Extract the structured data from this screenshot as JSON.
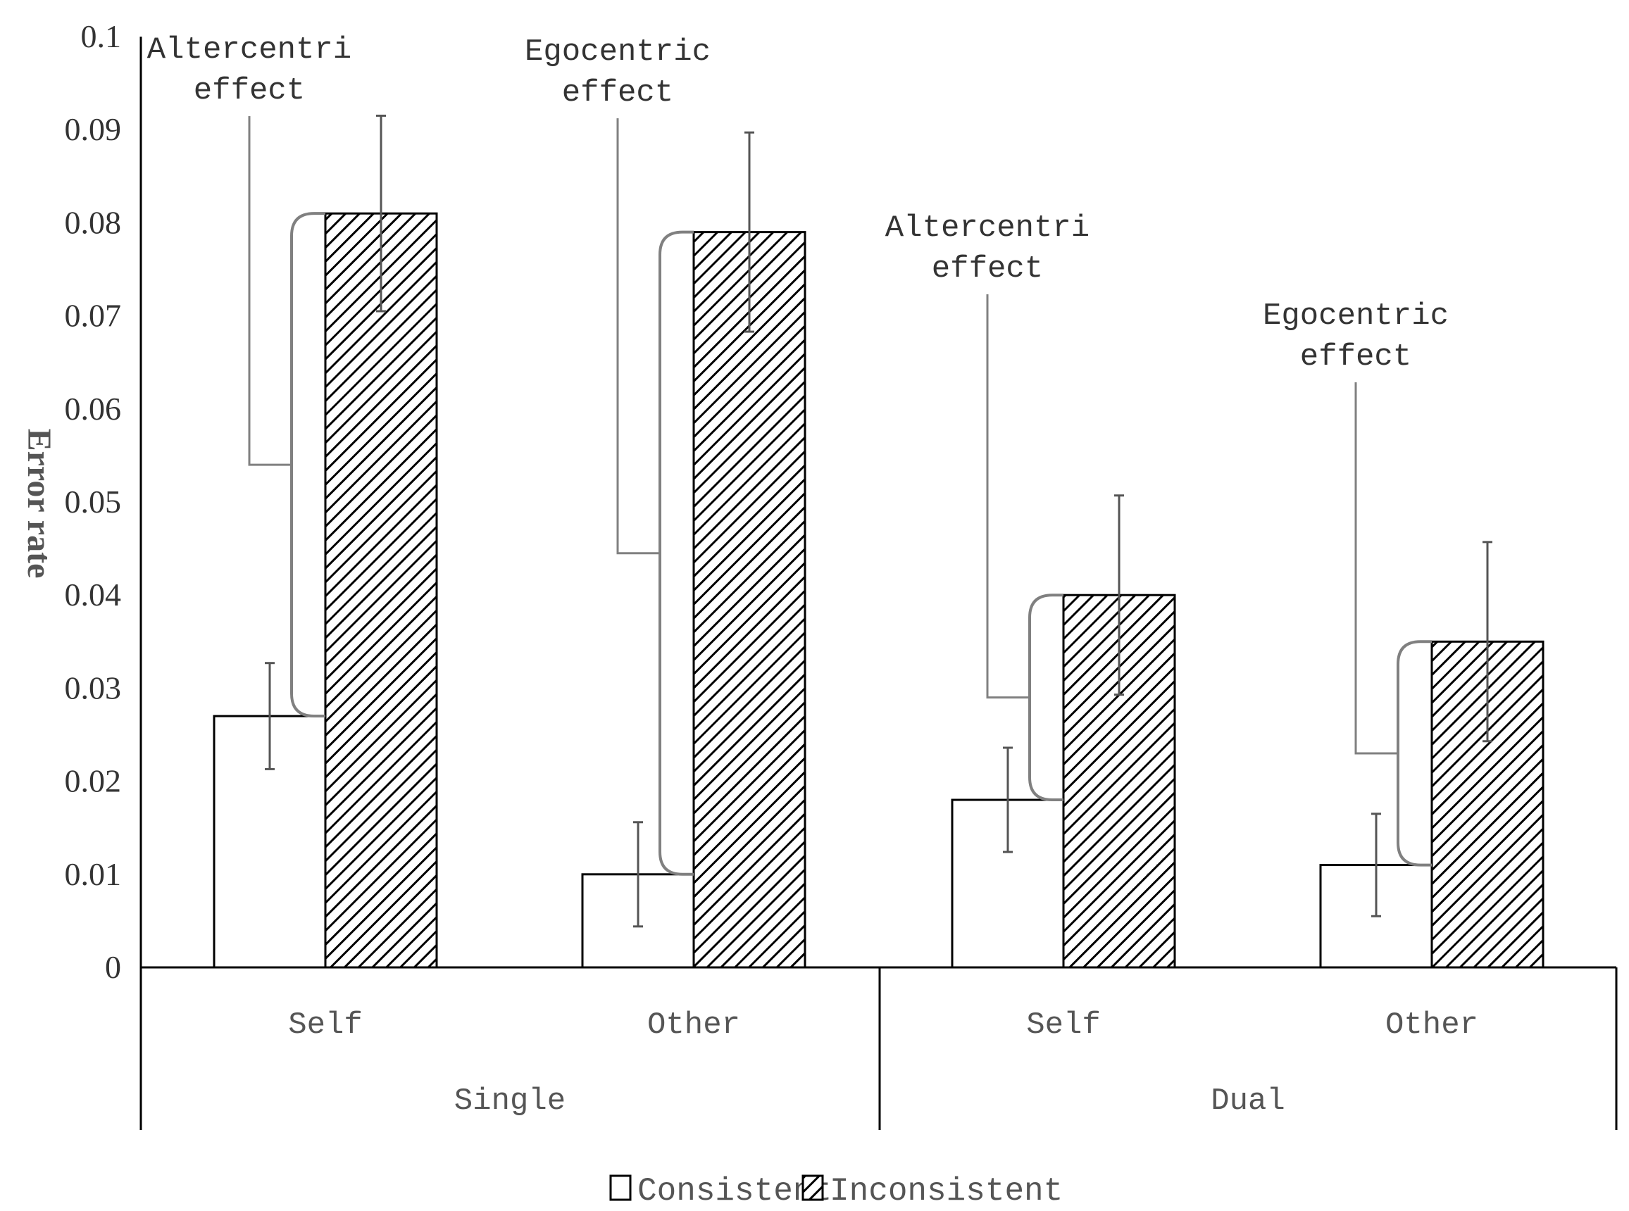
{
  "chart_data": {
    "type": "bar",
    "title": "",
    "xlabel": "",
    "ylabel": "Error rate",
    "ylim": [
      0,
      0.1
    ],
    "yticks": [
      "0",
      "0.01",
      "0.02",
      "0.03",
      "0.04",
      "0.05",
      "0.06",
      "0.07",
      "0.08",
      "0.09",
      "0.1"
    ],
    "groups": [
      {
        "label": "Single",
        "categories": [
          "Self",
          "Other"
        ]
      },
      {
        "label": "Dual",
        "categories": [
          "Self",
          "Other"
        ]
      }
    ],
    "categories": [
      "Self",
      "Other",
      "Self",
      "Other"
    ],
    "series": [
      {
        "name": "Consistent",
        "pattern": "solid-white",
        "values": [
          0.027,
          0.01,
          0.018,
          0.011
        ],
        "errors": [
          0.0057,
          0.0056,
          0.0056,
          0.0055
        ]
      },
      {
        "name": "Inconsistent",
        "pattern": "diagonal-hatch",
        "values": [
          0.081,
          0.079,
          0.04,
          0.035
        ],
        "errors": [
          0.0105,
          0.0107,
          0.0107,
          0.0107
        ]
      }
    ],
    "annotations": [
      {
        "category_index": 0,
        "line1": "Altercentri",
        "line2": "effect"
      },
      {
        "category_index": 1,
        "line1": "Egocentric",
        "line2": "effect"
      },
      {
        "category_index": 2,
        "line1": "Altercentri",
        "line2": "effect"
      },
      {
        "category_index": 3,
        "line1": "Egocentric",
        "line2": "effect"
      }
    ],
    "legend": [
      {
        "name": "Consistent",
        "pattern": "solid-white"
      },
      {
        "name": "Inconsistent",
        "pattern": "diagonal-hatch"
      }
    ],
    "legend_position": "bottom-center",
    "colors": {
      "bar_fill": "#ffffff",
      "bar_stroke": "#000000",
      "hatch": "#000000",
      "bracket": "#808080",
      "error_bar": "#555555",
      "axis": "#000000"
    }
  }
}
